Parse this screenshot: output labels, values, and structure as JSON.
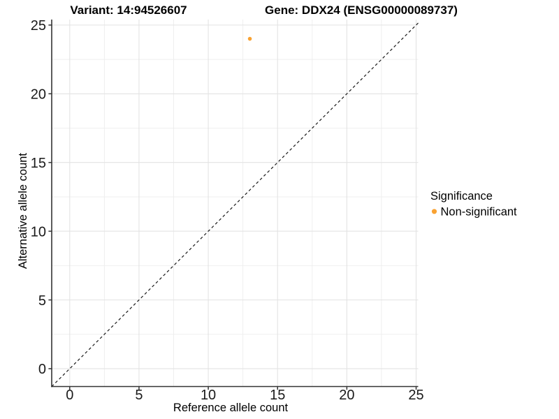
{
  "titles": {
    "variant": "Variant: 14:94526607",
    "gene": "Gene: DDX24 (ENSG00000089737)"
  },
  "axes": {
    "x_label": "Reference allele count",
    "y_label": "Alternative allele count"
  },
  "legend": {
    "title": "Significance",
    "items": [
      {
        "label": "Non-significant",
        "color": "#F9A232"
      }
    ]
  },
  "chart_data": {
    "type": "scatter",
    "title": "Variant: 14:94526607 | Gene: DDX24 (ENSG00000089737)",
    "xlabel": "Reference allele count",
    "ylabel": "Alternative allele count",
    "xlim": [
      -1.3,
      25.15
    ],
    "ylim": [
      -1.3,
      25.4
    ],
    "x_ticks": [
      0,
      5,
      10,
      15,
      20,
      25
    ],
    "y_ticks": [
      0,
      5,
      10,
      15,
      20,
      25
    ],
    "x_minor_ticks": [
      2.5,
      7.5,
      12.5,
      17.5,
      22.5
    ],
    "y_minor_ticks": [
      2.5,
      7.5,
      12.5,
      17.5,
      22.5
    ],
    "grid": true,
    "legend_position": "right",
    "series": [
      {
        "name": "Non-significant",
        "color": "#F9A232",
        "points": [
          {
            "x": 13,
            "y": 24
          }
        ]
      }
    ],
    "reference_line": {
      "type": "identity",
      "slope": 1,
      "intercept": 0,
      "style": "dashed",
      "color": "#1a1a1a"
    }
  },
  "style": {
    "grid_major_color": "#e3e3e3",
    "grid_minor_color": "#ededed",
    "axis_line_color": "#333333",
    "tick_color": "#333333",
    "point_color": "#F9A232",
    "background": "#ffffff"
  }
}
